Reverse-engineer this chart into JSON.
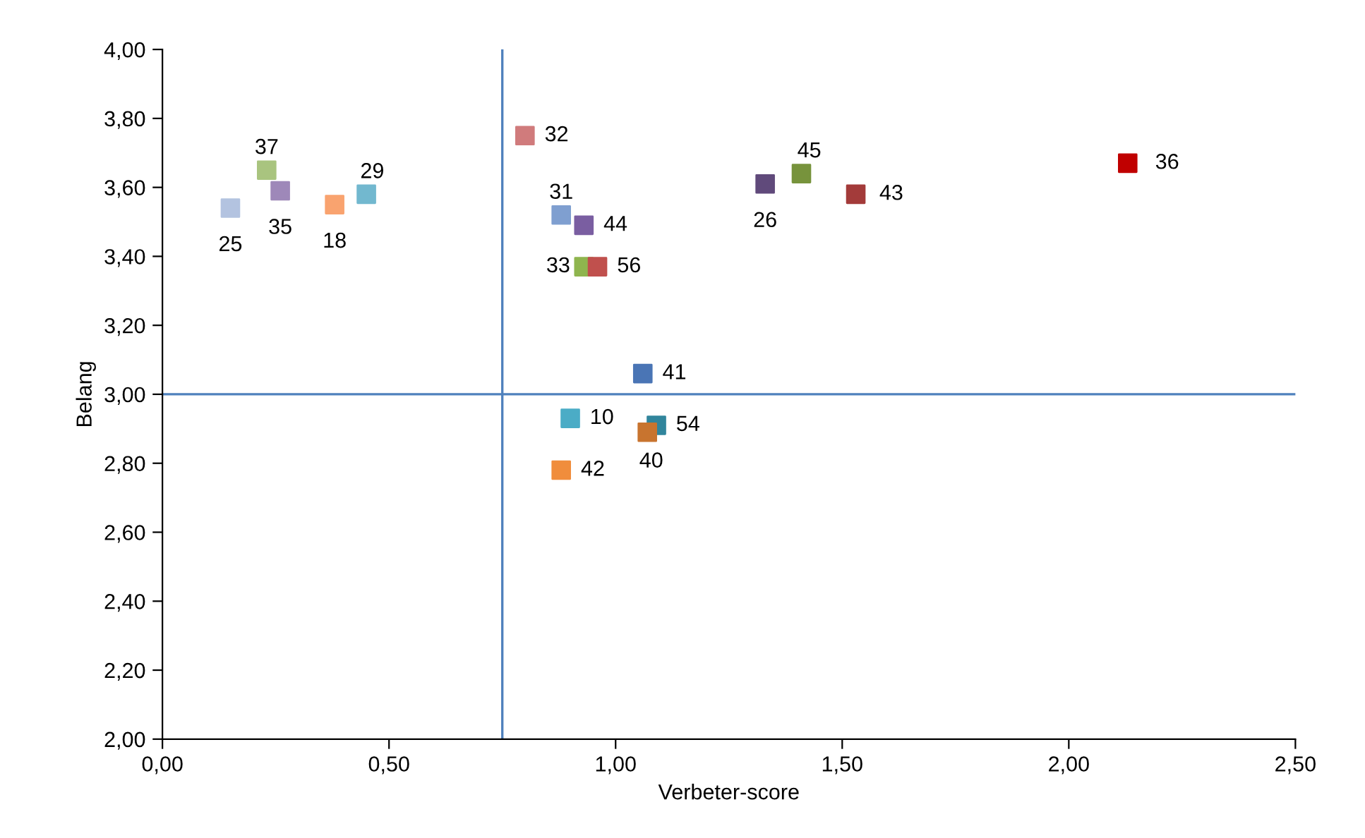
{
  "chart_data": {
    "type": "scatter",
    "xlabel": "Verbeter-score",
    "ylabel": "Belang",
    "marker": "square",
    "grid": false,
    "legend": false,
    "xlim": [
      0,
      2.5
    ],
    "ylim": [
      2,
      4
    ],
    "xticks": [
      {
        "value": 0,
        "label": "0,00"
      },
      {
        "value": 0.5,
        "label": "0,50"
      },
      {
        "value": 1,
        "label": "1,00"
      },
      {
        "value": 1.5,
        "label": "1,50"
      },
      {
        "value": 2,
        "label": "2,00"
      },
      {
        "value": 2.5,
        "label": "2,50"
      }
    ],
    "yticks": [
      {
        "value": 2,
        "label": "2,00"
      },
      {
        "value": 2.2,
        "label": "2,20"
      },
      {
        "value": 2.4,
        "label": "2,40"
      },
      {
        "value": 2.6,
        "label": "2,60"
      },
      {
        "value": 2.8,
        "label": "2,80"
      },
      {
        "value": 3,
        "label": "3,00"
      },
      {
        "value": 3.2,
        "label": "3,20"
      },
      {
        "value": 3.4,
        "label": "3,40"
      },
      {
        "value": 3.6,
        "label": "3,60"
      },
      {
        "value": 3.8,
        "label": "3,80"
      },
      {
        "value": 4,
        "label": "4,00"
      }
    ],
    "ref_lines": [
      {
        "axis": "x",
        "value": 0.75,
        "color": "#4f81bd"
      },
      {
        "axis": "y",
        "value": 3.0,
        "color": "#4f81bd"
      }
    ],
    "series": [
      {
        "name": "25",
        "color": "#b3c3e0",
        "x": [
          0.15
        ],
        "values": [
          3.54
        ]
      },
      {
        "name": "37",
        "color": "#a9c47f",
        "x": [
          0.23
        ],
        "values": [
          3.65
        ]
      },
      {
        "name": "35",
        "color": "#9e88b9",
        "x": [
          0.26
        ],
        "values": [
          3.59
        ]
      },
      {
        "name": "18",
        "color": "#f9a36f",
        "x": [
          0.38
        ],
        "values": [
          3.55
        ]
      },
      {
        "name": "29",
        "color": "#72b8cf",
        "x": [
          0.45
        ],
        "values": [
          3.58
        ]
      },
      {
        "name": "32",
        "color": "#d07b7c",
        "x": [
          0.8
        ],
        "values": [
          3.75
        ]
      },
      {
        "name": "31",
        "color": "#7f9fd0",
        "x": [
          0.88
        ],
        "values": [
          3.52
        ]
      },
      {
        "name": "44",
        "color": "#7a5ea1",
        "x": [
          0.93
        ],
        "values": [
          3.49
        ]
      },
      {
        "name": "33",
        "color": "#8fb54e",
        "x": [
          0.93
        ],
        "values": [
          3.37
        ]
      },
      {
        "name": "56",
        "color": "#c0504d",
        "x": [
          0.96
        ],
        "values": [
          3.37
        ]
      },
      {
        "name": "41",
        "color": "#4a75b5",
        "x": [
          1.06
        ],
        "values": [
          3.06
        ]
      },
      {
        "name": "10",
        "color": "#4bacc6",
        "x": [
          0.9
        ],
        "values": [
          2.93
        ]
      },
      {
        "name": "54",
        "color": "#31859c",
        "x": [
          1.09
        ],
        "values": [
          2.91
        ]
      },
      {
        "name": "40",
        "color": "#c8742f",
        "x": [
          1.07
        ],
        "values": [
          2.89
        ]
      },
      {
        "name": "42",
        "color": "#f08d3c",
        "x": [
          0.88
        ],
        "values": [
          2.78
        ]
      },
      {
        "name": "26",
        "color": "#604a7b",
        "x": [
          1.33
        ],
        "values": [
          3.61
        ]
      },
      {
        "name": "45",
        "color": "#77933c",
        "x": [
          1.41
        ],
        "values": [
          3.64
        ]
      },
      {
        "name": "43",
        "color": "#a33b3a",
        "x": [
          1.53
        ],
        "values": [
          3.58
        ]
      },
      {
        "name": "36",
        "color": "#c00000",
        "x": [
          2.13
        ],
        "values": [
          3.67
        ]
      }
    ]
  }
}
